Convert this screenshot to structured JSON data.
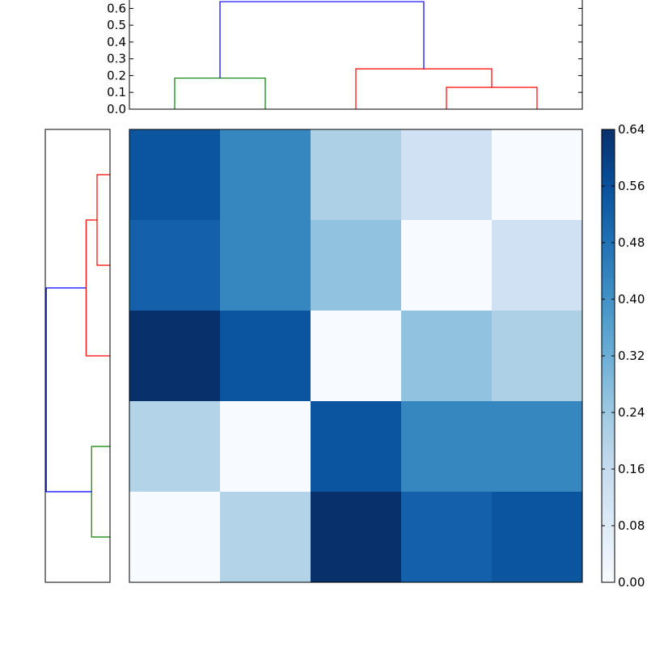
{
  "chart_data": [
    {
      "type": "dendrogram",
      "orientation": "top",
      "ylim": [
        0,
        0.65
      ],
      "yticks": [
        "0.0",
        "0.1",
        "0.2",
        "0.3",
        "0.4",
        "0.5",
        "0.6"
      ],
      "leaves": 5,
      "links": [
        {
          "left": 0,
          "right": 1,
          "height": 0.185,
          "color": "#008000"
        },
        {
          "left": 3,
          "right": 4,
          "height": 0.13,
          "color": "#ff0000"
        },
        {
          "left": 2,
          "right": "3+4",
          "height": 0.24,
          "color": "#ff0000"
        },
        {
          "left": "0+1",
          "right": "2+3+4",
          "height": 0.64,
          "color": "#0000ff"
        }
      ]
    },
    {
      "type": "dendrogram",
      "orientation": "left",
      "leaves": 5,
      "links": [
        {
          "left": 0,
          "right": 1,
          "height": 0.13,
          "color": "#ff0000"
        },
        {
          "left": "0+1",
          "right": 2,
          "height": 0.24,
          "color": "#ff0000"
        },
        {
          "left": 3,
          "right": 4,
          "height": 0.185,
          "color": "#008000"
        },
        {
          "left": "0+1+2",
          "right": "3+4",
          "height": 0.64,
          "color": "#0000ff"
        }
      ]
    },
    {
      "type": "heatmap",
      "colormap": "Blues",
      "vmin": 0,
      "vmax": 0.64,
      "values": [
        [
          0.55,
          0.43,
          0.21,
          0.13,
          0.0
        ],
        [
          0.52,
          0.43,
          0.26,
          0.0,
          0.13
        ],
        [
          0.64,
          0.55,
          0.0,
          0.26,
          0.21
        ],
        [
          0.2,
          0.0,
          0.55,
          0.43,
          0.43
        ],
        [
          0.0,
          0.2,
          0.64,
          0.52,
          0.55
        ]
      ],
      "colorbar_ticks": [
        "0.00",
        "0.08",
        "0.16",
        "0.24",
        "0.32",
        "0.40",
        "0.48",
        "0.56",
        "0.64"
      ]
    }
  ]
}
